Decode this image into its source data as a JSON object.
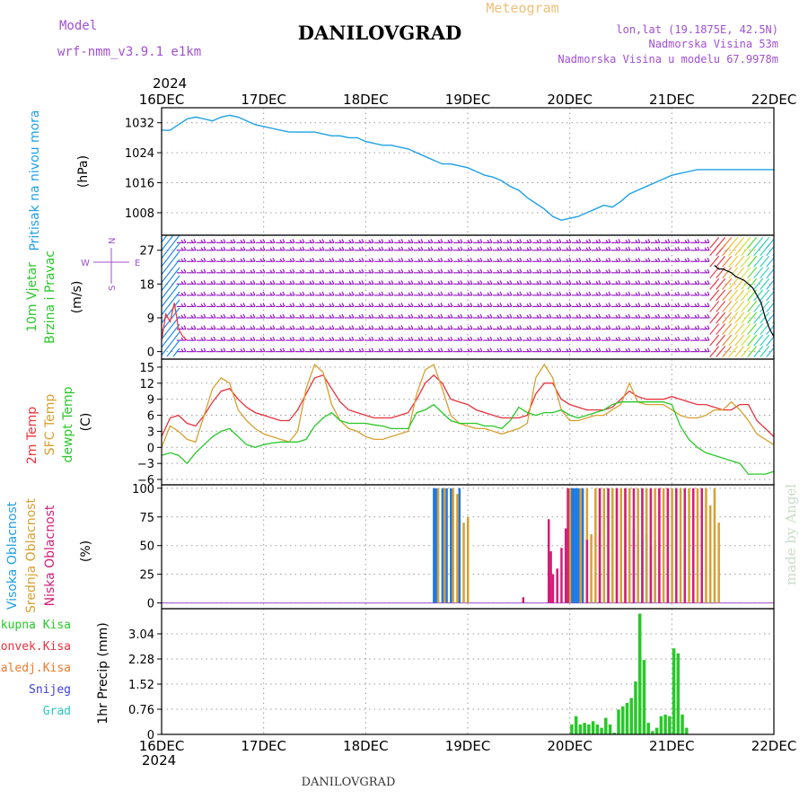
{
  "header": {
    "model_label": "Model",
    "model_name": "wrf-nmm_v3.9.1 e1km",
    "station": "DANILOVGRAD",
    "meteogram": "Meteogram",
    "lonlat": "lon,lat (19.1875E, 42.5N)",
    "elevation": "Nadmorska Visina 53m",
    "elevation_model": "Nadmorska Visina u modelu 67.9978m",
    "year": "2024",
    "footer_station": "DANILOVGRAD",
    "credit": "made by Angel"
  },
  "x_axis": {
    "ticks": [
      "16DEC",
      "17DEC",
      "18DEC",
      "19DEC",
      "20DEC",
      "21DEC",
      "22DEC"
    ],
    "range_hours": [
      0,
      144
    ]
  },
  "colors": {
    "pressure": "#1ea0e6",
    "temp2m": "#e8323c",
    "sfc_temp": "#d8a030",
    "dewpt": "#28c828",
    "wind_barb": "#9b1fc8",
    "high_cloud": "#1e78e6",
    "mid_cloud": "#d8a030",
    "low_cloud": "#d21e78",
    "precip_total": "#28c828"
  },
  "chart_data": [
    {
      "type": "line",
      "id": "pressure",
      "ylabel": "Pritisak na nivou mora",
      "unit": "(hPa)",
      "ylim": [
        1002,
        1036
      ],
      "yticks": [
        1008,
        1016,
        1024,
        1032
      ],
      "grid": true,
      "series": [
        {
          "x": [
            0,
            2,
            4,
            6,
            8,
            10,
            12,
            14,
            16,
            18,
            20,
            22,
            24,
            26,
            28,
            30,
            32,
            34,
            36,
            38,
            40,
            42,
            44,
            46,
            48,
            50,
            52,
            54,
            56,
            58,
            60,
            62,
            64,
            66,
            68,
            70,
            72,
            74,
            76,
            78,
            80,
            82,
            84,
            86,
            88,
            90,
            92,
            94,
            96,
            98,
            100,
            102,
            104,
            106,
            108,
            110,
            112,
            114,
            116,
            118,
            120,
            122,
            124,
            126,
            128,
            130,
            132,
            134,
            136,
            138,
            140,
            142,
            144
          ],
          "values": [
            1030,
            1030,
            1031.5,
            1033,
            1033.5,
            1033,
            1032.5,
            1033.5,
            1034,
            1033.5,
            1032.5,
            1031.5,
            1031,
            1030.5,
            1030,
            1029.5,
            1029.5,
            1029.5,
            1029.5,
            1029,
            1028.5,
            1028.5,
            1028,
            1028,
            1027,
            1026.5,
            1026,
            1026,
            1025.5,
            1025,
            1024,
            1023,
            1022,
            1021,
            1021,
            1020.5,
            1020,
            1019,
            1018,
            1017.5,
            1016.5,
            1015,
            1014,
            1012,
            1010.5,
            1009,
            1007,
            1006,
            1006.5,
            1007,
            1008,
            1009,
            1010,
            1009.5,
            1011,
            1013,
            1014,
            1015,
            1016,
            1017,
            1018,
            1018.5,
            1019,
            1019.5,
            1019.5,
            1019.5,
            1019.5,
            1019.5,
            1019.5,
            1019.5,
            1019.5,
            1019.5,
            1019.5
          ]
        }
      ]
    },
    {
      "type": "scatter",
      "id": "wind",
      "ylabel": "10m Vjetar",
      "ylabel2": "Brzina i Pravac",
      "unit": "(m/s)",
      "compass": {
        "n": "N",
        "s": "S",
        "e": "E",
        "w": "W"
      },
      "ylim": [
        -2,
        31
      ],
      "yticks": [
        0,
        9,
        18,
        27
      ],
      "grid": true,
      "speed_levels": [
        0,
        3,
        6,
        9,
        12,
        15,
        18,
        21,
        24,
        27,
        29
      ],
      "calm_until_hours": 130,
      "storm_from_hours": 130,
      "trace": {
        "x": [
          130,
          131,
          132,
          133,
          134,
          135,
          136,
          137,
          138,
          139,
          140,
          141,
          142,
          143,
          144
        ],
        "values": [
          23,
          22,
          22,
          21.5,
          21,
          20,
          19.5,
          19,
          18,
          17,
          15,
          13,
          9,
          6,
          4
        ]
      }
    },
    {
      "type": "line",
      "id": "temperature",
      "ylabel": "2m Temp",
      "ylabel2": "SFC Temp",
      "ylabel3": "dewpt Temp",
      "unit": "(C)",
      "ylim": [
        -7,
        16.5
      ],
      "yticks": [
        -6,
        -3,
        0,
        3,
        6,
        9,
        12,
        15
      ],
      "grid": true,
      "series": [
        {
          "name": "2m Temp",
          "color": "#e8323c",
          "x": [
            0,
            2,
            4,
            6,
            8,
            10,
            12,
            14,
            16,
            18,
            20,
            22,
            24,
            26,
            28,
            30,
            32,
            34,
            36,
            38,
            40,
            42,
            44,
            46,
            48,
            50,
            52,
            54,
            56,
            58,
            60,
            62,
            64,
            66,
            68,
            70,
            72,
            74,
            76,
            78,
            80,
            82,
            84,
            86,
            88,
            90,
            92,
            94,
            96,
            98,
            100,
            102,
            104,
            106,
            108,
            110,
            112,
            114,
            116,
            118,
            120,
            122,
            124,
            126,
            128,
            130,
            132,
            134,
            136,
            138,
            140,
            142,
            144
          ],
          "values": [
            2,
            5.5,
            6,
            4.5,
            4,
            6,
            8.5,
            10.5,
            11,
            9,
            7.5,
            6.5,
            6,
            5.5,
            5,
            5,
            7,
            10,
            13,
            13.5,
            11,
            8.5,
            7,
            6.5,
            6,
            5.5,
            5.5,
            5.5,
            6,
            6.5,
            9,
            12,
            13.5,
            12,
            9,
            8.5,
            8,
            7,
            6.5,
            6,
            5.5,
            5.5,
            5.5,
            6,
            10,
            12,
            12,
            9,
            8,
            7.5,
            7,
            7,
            7,
            7.5,
            9,
            10.5,
            9.5,
            9,
            9,
            9,
            9.5,
            9,
            8.5,
            8,
            8,
            7.5,
            7,
            7,
            8,
            8,
            5,
            3.5,
            2
          ]
        },
        {
          "name": "SFC Temp",
          "color": "#d8a030",
          "x": [
            0,
            2,
            4,
            6,
            8,
            10,
            12,
            14,
            16,
            18,
            20,
            22,
            24,
            26,
            28,
            30,
            32,
            34,
            36,
            38,
            40,
            42,
            44,
            46,
            48,
            50,
            52,
            54,
            56,
            58,
            60,
            62,
            64,
            66,
            68,
            70,
            72,
            74,
            76,
            78,
            80,
            82,
            84,
            86,
            88,
            90,
            92,
            94,
            96,
            98,
            100,
            102,
            104,
            106,
            108,
            110,
            112,
            114,
            116,
            118,
            120,
            122,
            124,
            126,
            128,
            130,
            132,
            134,
            136,
            138,
            140,
            142,
            144
          ],
          "values": [
            0,
            4,
            3,
            1.5,
            1,
            6,
            11,
            13,
            12,
            7,
            5,
            3.5,
            2.5,
            2,
            1.5,
            1,
            3,
            11,
            15.5,
            14,
            8,
            5,
            3.5,
            3,
            2,
            1.5,
            1.5,
            2,
            2.5,
            3,
            10,
            14.5,
            15.5,
            11,
            6,
            4.5,
            4,
            3.5,
            3.5,
            3,
            2.5,
            3,
            3.5,
            4.5,
            13,
            15.5,
            13,
            7,
            5,
            5,
            5.5,
            6,
            6,
            7,
            8,
            12,
            8.5,
            8,
            8,
            8,
            7,
            6,
            5.5,
            5.5,
            6,
            7,
            7,
            8.5,
            7,
            5,
            2.5,
            1.5,
            0.5
          ]
        },
        {
          "name": "dewpt Temp",
          "color": "#28c828",
          "x": [
            0,
            2,
            4,
            6,
            8,
            10,
            12,
            14,
            16,
            18,
            20,
            22,
            24,
            26,
            28,
            30,
            32,
            34,
            36,
            38,
            40,
            42,
            44,
            46,
            48,
            50,
            52,
            54,
            56,
            58,
            60,
            62,
            64,
            66,
            68,
            70,
            72,
            74,
            76,
            78,
            80,
            82,
            84,
            86,
            88,
            90,
            92,
            94,
            96,
            98,
            100,
            102,
            104,
            106,
            108,
            110,
            112,
            114,
            116,
            118,
            120,
            122,
            124,
            126,
            128,
            130,
            132,
            134,
            136,
            138,
            140,
            142,
            144
          ],
          "values": [
            -1.5,
            -1,
            -1.5,
            -3,
            -1,
            0.5,
            2,
            3,
            3.5,
            2,
            0.5,
            0,
            0.5,
            0.8,
            1,
            1,
            1,
            1.5,
            4,
            5.5,
            6.5,
            5,
            4.5,
            4.5,
            4.5,
            4.2,
            4,
            3.5,
            3.5,
            3.5,
            6.5,
            7,
            8,
            6.5,
            5,
            4.5,
            4.5,
            4.5,
            4,
            4,
            3.5,
            5,
            7.5,
            6.5,
            6,
            6.5,
            6.5,
            7,
            6,
            5.5,
            6,
            6.5,
            7,
            8,
            8.5,
            8.5,
            8.5,
            8.5,
            8.5,
            8.5,
            8,
            4,
            1.5,
            0,
            -1,
            -1.5,
            -2,
            -2.5,
            -3,
            -5,
            -5,
            -5,
            -4.5
          ]
        }
      ]
    },
    {
      "type": "bar",
      "id": "clouds",
      "ylabel": "Visoka Oblacnost",
      "ylabel2": "Srednja Oblacnost",
      "ylabel3": "Niska Oblacnost",
      "unit": "(%)",
      "ylim": [
        -5,
        103
      ],
      "yticks": [
        0,
        25,
        50,
        75,
        100
      ],
      "grid": true,
      "series": [
        {
          "name": "Visoka Oblacnost",
          "color": "#1e78e6",
          "x": [
            64,
            64.5,
            66,
            67,
            68,
            70,
            96,
            96.5,
            97,
            97.5,
            98,
            99,
            110,
            111,
            112,
            113,
            114,
            115,
            116
          ],
          "values": [
            100,
            100,
            100,
            100,
            100,
            100,
            100,
            100,
            100,
            100,
            100,
            100,
            100,
            65,
            60,
            55,
            60,
            50,
            55
          ]
        },
        {
          "name": "Srednja Oblacnost",
          "color": "#d8a030",
          "x": [
            65,
            66.5,
            68.5,
            69.5,
            71,
            72,
            96,
            98.5,
            100,
            101,
            102,
            103,
            104,
            105,
            106,
            107,
            108,
            109,
            110,
            112,
            113,
            114,
            115,
            116,
            117,
            118,
            119,
            120,
            121,
            122,
            123,
            124,
            125,
            126,
            127,
            128,
            129,
            130,
            131
          ],
          "values": [
            100,
            100,
            100,
            95,
            70,
            75,
            100,
            100,
            100,
            60,
            100,
            100,
            100,
            100,
            100,
            100,
            100,
            100,
            100,
            100,
            100,
            100,
            100,
            100,
            100,
            100,
            100,
            100,
            100,
            100,
            100,
            100,
            100,
            100,
            100,
            100,
            85,
            100,
            70
          ]
        },
        {
          "name": "Niska Oblacnost",
          "color": "#d21e78",
          "x": [
            85,
            91,
            91.5,
            92,
            93,
            94,
            95,
            95.5,
            100,
            103,
            105,
            107,
            109,
            111,
            113,
            115,
            117,
            119,
            121,
            123,
            125,
            127
          ],
          "values": [
            5,
            73,
            45,
            25,
            30,
            48,
            65,
            100,
            55,
            100,
            100,
            100,
            100,
            100,
            100,
            100,
            100,
            100,
            100,
            100,
            100,
            100
          ]
        }
      ]
    },
    {
      "type": "bar",
      "id": "precip",
      "ylabel": "1hr Precip",
      "unit": "(mm)",
      "legend": [
        "Ukupna Kisa",
        "Konvek.Kisa",
        "Zaledj.Kisa",
        "Snijeg",
        "Grad"
      ],
      "legend_colors": [
        "#28c828",
        "#e8323c",
        "#f07828",
        "#3c3ce6",
        "#28c8c8"
      ],
      "ylim": [
        0,
        3.8
      ],
      "yticks": [
        0,
        0.76,
        1.52,
        2.28,
        3.04
      ],
      "yticklabels": [
        "0",
        "0.76",
        "1.52",
        "2.28",
        "3.04"
      ],
      "grid": true,
      "series": [
        {
          "name": "Ukupna Kisa",
          "color": "#28c828",
          "x": [
            96,
            97,
            98,
            99,
            100,
            101,
            102,
            103,
            104,
            105,
            106,
            107,
            108,
            109,
            110,
            111,
            112,
            113,
            114,
            115,
            116,
            117,
            118,
            119,
            120,
            121,
            122,
            123
          ],
          "values": [
            0.3,
            0.55,
            0.3,
            0.35,
            0.3,
            0.4,
            0.3,
            0.2,
            0.5,
            0.3,
            0.05,
            0.75,
            0.85,
            0.95,
            1.1,
            1.6,
            3.65,
            2.25,
            0.35,
            0.1,
            0.2,
            0.55,
            0.6,
            0.55,
            2.6,
            2.45,
            0.6,
            0.2
          ]
        }
      ]
    }
  ]
}
